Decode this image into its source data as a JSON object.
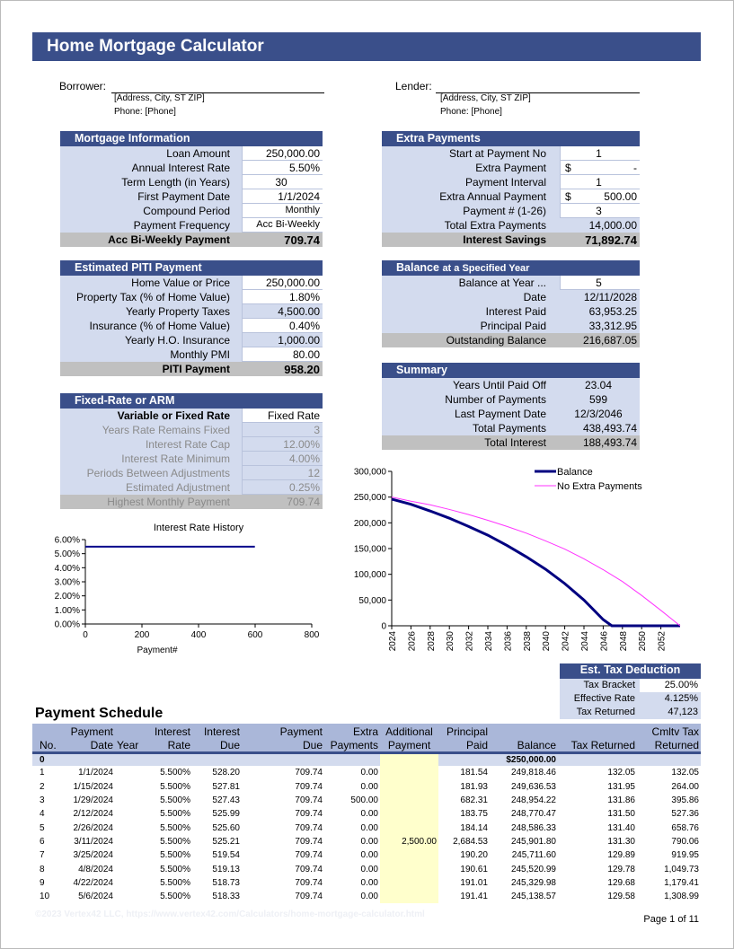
{
  "title": "Home Mortgage Calculator",
  "borrower": {
    "label": "Borrower:",
    "address": "[Address, City, ST ZIP]",
    "phone": "Phone: [Phone]"
  },
  "lender": {
    "label": "Lender:",
    "address": "[Address, City, ST ZIP]",
    "phone": "Phone: [Phone]"
  },
  "panels": {
    "mortgage": {
      "title": "Mortgage Information",
      "rows": [
        {
          "label": "Loan Amount",
          "value": "250,000.00",
          "kind": "input"
        },
        {
          "label": "Annual Interest Rate",
          "value": "5.50%",
          "kind": "input"
        },
        {
          "label": "Term Length (in Years)",
          "value": "30",
          "kind": "input",
          "center": true
        },
        {
          "label": "First Payment Date",
          "value": "1/1/2024",
          "kind": "input"
        },
        {
          "label": "Compound Period",
          "value": "Monthly",
          "kind": "input",
          "small": true
        },
        {
          "label": "Payment Frequency",
          "value": "Acc Bi-Weekly",
          "kind": "input",
          "small": true
        },
        {
          "label": "Acc Bi-Weekly Payment",
          "value": "709.74",
          "kind": "total"
        }
      ]
    },
    "piti": {
      "title": "Estimated PITI Payment",
      "rows": [
        {
          "label": "Home Value or Price",
          "value": "250,000.00",
          "kind": "input"
        },
        {
          "label": "Property Tax (% of Home Value)",
          "value": "1.80%",
          "kind": "input"
        },
        {
          "label": "Yearly Property Taxes",
          "value": "4,500.00",
          "kind": "calc"
        },
        {
          "label": "Insurance (% of Home Value)",
          "value": "0.40%",
          "kind": "input"
        },
        {
          "label": "Yearly H.O. Insurance",
          "value": "1,000.00",
          "kind": "calc"
        },
        {
          "label": "Monthly PMI",
          "value": "80.00",
          "kind": "input"
        },
        {
          "label": "PITI Payment",
          "value": "958.20",
          "kind": "total"
        }
      ]
    },
    "arm": {
      "title": "Fixed-Rate or ARM",
      "rows": [
        {
          "label": "Variable or Fixed Rate",
          "value": "Fixed Rate",
          "kind": "input",
          "bold": true
        },
        {
          "label": "Years Rate Remains Fixed",
          "value": "3",
          "kind": "dim"
        },
        {
          "label": "Interest Rate Cap",
          "value": "12.00%",
          "kind": "dim"
        },
        {
          "label": "Interest Rate Minimum",
          "value": "4.00%",
          "kind": "dim"
        },
        {
          "label": "Periods Between Adjustments",
          "value": "12",
          "kind": "dim"
        },
        {
          "label": "Estimated Adjustment",
          "value": "0.25%",
          "kind": "dim"
        },
        {
          "label": "Highest Monthly Payment",
          "value": "709.74",
          "kind": "dimtotal"
        }
      ]
    },
    "extra": {
      "title": "Extra Payments",
      "rows": [
        {
          "label": "Start at Payment No",
          "value": "1",
          "kind": "input",
          "center": true
        },
        {
          "label": "Extra Payment",
          "prefix": "$",
          "value": "-",
          "kind": "input"
        },
        {
          "label": "Payment Interval",
          "value": "1",
          "kind": "input",
          "center": true
        },
        {
          "label": "Extra Annual Payment",
          "prefix": "$",
          "value": "500.00",
          "kind": "input"
        },
        {
          "label": "Payment # (1-26)",
          "value": "3",
          "kind": "input",
          "center": true
        },
        {
          "label": "Total Extra Payments",
          "value": "14,000.00",
          "kind": "sum"
        },
        {
          "label": "Interest Savings",
          "value": "71,892.74",
          "kind": "total"
        }
      ]
    },
    "balance": {
      "title": "Balance",
      "title_suffix": "at a Specified Year",
      "rows": [
        {
          "label": "Balance at Year ...",
          "value": "5",
          "kind": "input",
          "center": true
        },
        {
          "label": "Date",
          "value": "12/11/2028",
          "kind": "sum"
        },
        {
          "label": "Interest Paid",
          "value": "63,953.25",
          "kind": "sum"
        },
        {
          "label": "Principal Paid",
          "value": "33,312.95",
          "kind": "sum"
        },
        {
          "label": "Outstanding Balance",
          "value": "216,687.05",
          "kind": "totalplain"
        }
      ]
    },
    "summary": {
      "title": "Summary",
      "rows": [
        {
          "label": "Years Until Paid Off",
          "value": "23.04",
          "kind": "sum",
          "center": true
        },
        {
          "label": "Number of Payments",
          "value": "599",
          "kind": "sum",
          "center": true
        },
        {
          "label": "Last Payment Date",
          "value": "12/3/2046",
          "kind": "sum",
          "center": true
        },
        {
          "label": "Total Payments",
          "value": "438,493.74",
          "kind": "sum"
        },
        {
          "label": "Total Interest",
          "value": "188,493.74",
          "kind": "totalplain"
        }
      ]
    }
  },
  "tax": {
    "title": "Est. Tax Deduction",
    "rows": [
      {
        "label": "Tax Bracket",
        "value": "25.00%",
        "input": true
      },
      {
        "label": "Effective Rate",
        "value": "4.125%"
      },
      {
        "label": "Tax Returned",
        "value": "47,123"
      }
    ]
  },
  "chart_data": [
    {
      "type": "line",
      "title": "Interest Rate History",
      "xlabel": "Payment#",
      "ylabel": "",
      "xlim": [
        0,
        800
      ],
      "ylim": [
        0,
        0.06
      ],
      "xticks": [
        "0",
        "200",
        "400",
        "600",
        "800"
      ],
      "yticks": [
        "0.00%",
        "1.00%",
        "2.00%",
        "3.00%",
        "4.00%",
        "5.00%",
        "6.00%"
      ],
      "series": [
        {
          "name": "Interest Rate",
          "color": "#00008b",
          "x": [
            0,
            599
          ],
          "y": [
            0.055,
            0.055
          ]
        }
      ]
    },
    {
      "type": "line",
      "title": "",
      "xlabel": "",
      "ylabel": "",
      "legend": "top-right",
      "xlim": [
        2024,
        2054
      ],
      "ylim": [
        0,
        300000
      ],
      "xticks": [
        "2024",
        "2026",
        "2028",
        "2030",
        "2032",
        "2034",
        "2036",
        "2038",
        "2040",
        "2042",
        "2044",
        "2046",
        "2048",
        "2050",
        "2052"
      ],
      "yticks": [
        "0",
        "50,000",
        "100,000",
        "150,000",
        "200,000",
        "250,000",
        "300,000"
      ],
      "series": [
        {
          "name": "Balance",
          "color": "#000080",
          "x": [
            2024,
            2026,
            2028,
            2030,
            2032,
            2034,
            2036,
            2038,
            2040,
            2042,
            2044,
            2046,
            2046.9,
            2048,
            2050,
            2052,
            2054
          ],
          "y": [
            246000,
            236000,
            223000,
            209000,
            193000,
            176000,
            156000,
            134000,
            110000,
            82000,
            50000,
            12000,
            0,
            0,
            0,
            0,
            0
          ]
        },
        {
          "name": "No Extra Payments",
          "color": "#ff33ff",
          "x": [
            2024,
            2026,
            2028,
            2030,
            2032,
            2034,
            2036,
            2038,
            2040,
            2042,
            2044,
            2046,
            2048,
            2050,
            2052,
            2054
          ],
          "y": [
            250000,
            242000,
            235000,
            226000,
            216000,
            205000,
            193000,
            180000,
            165000,
            149000,
            130000,
            109000,
            86000,
            59000,
            30000,
            0
          ]
        }
      ]
    }
  ],
  "schedule": {
    "title": "Payment Schedule",
    "headers_top": [
      "",
      "Payment",
      "",
      "Interest",
      "Interest",
      "Payment",
      "Extra",
      "Additional",
      "Principal",
      "",
      "",
      "Cmltv Tax"
    ],
    "headers_bottom": [
      "No.",
      "Date",
      "Year",
      "Rate",
      "Due",
      "Due",
      "Payments",
      "Payment",
      "Paid",
      "Balance",
      "Tax Returned",
      "Returned"
    ],
    "rows": [
      [
        "0",
        "",
        "",
        "",
        "",
        "",
        "",
        "",
        "",
        "$250,000.00",
        "",
        ""
      ],
      [
        "1",
        "1/1/2024",
        "",
        "5.500%",
        "528.20",
        "709.74",
        "0.00",
        "",
        "181.54",
        "249,818.46",
        "132.05",
        "132.05"
      ],
      [
        "2",
        "1/15/2024",
        "",
        "5.500%",
        "527.81",
        "709.74",
        "0.00",
        "",
        "181.93",
        "249,636.53",
        "131.95",
        "264.00"
      ],
      [
        "3",
        "1/29/2024",
        "",
        "5.500%",
        "527.43",
        "709.74",
        "500.00",
        "",
        "682.31",
        "248,954.22",
        "131.86",
        "395.86"
      ],
      [
        "4",
        "2/12/2024",
        "",
        "5.500%",
        "525.99",
        "709.74",
        "0.00",
        "",
        "183.75",
        "248,770.47",
        "131.50",
        "527.36"
      ],
      [
        "5",
        "2/26/2024",
        "",
        "5.500%",
        "525.60",
        "709.74",
        "0.00",
        "",
        "184.14",
        "248,586.33",
        "131.40",
        "658.76"
      ],
      [
        "6",
        "3/11/2024",
        "",
        "5.500%",
        "525.21",
        "709.74",
        "0.00",
        "2,500.00",
        "2,684.53",
        "245,901.80",
        "131.30",
        "790.06"
      ],
      [
        "7",
        "3/25/2024",
        "",
        "5.500%",
        "519.54",
        "709.74",
        "0.00",
        "",
        "190.20",
        "245,711.60",
        "129.89",
        "919.95"
      ],
      [
        "8",
        "4/8/2024",
        "",
        "5.500%",
        "519.13",
        "709.74",
        "0.00",
        "",
        "190.61",
        "245,520.99",
        "129.78",
        "1,049.73"
      ],
      [
        "9",
        "4/22/2024",
        "",
        "5.500%",
        "518.73",
        "709.74",
        "0.00",
        "",
        "191.01",
        "245,329.98",
        "129.68",
        "1,179.41"
      ],
      [
        "10",
        "5/6/2024",
        "",
        "5.500%",
        "518.33",
        "709.74",
        "0.00",
        "",
        "191.41",
        "245,138.57",
        "129.58",
        "1,308.99"
      ]
    ]
  },
  "footer": {
    "copyright": "©2023 Vertex42 LLC, https://www.vertex42.com/Calculators/home-mortgage-calculator.html",
    "page": "Page 1 of 11"
  }
}
